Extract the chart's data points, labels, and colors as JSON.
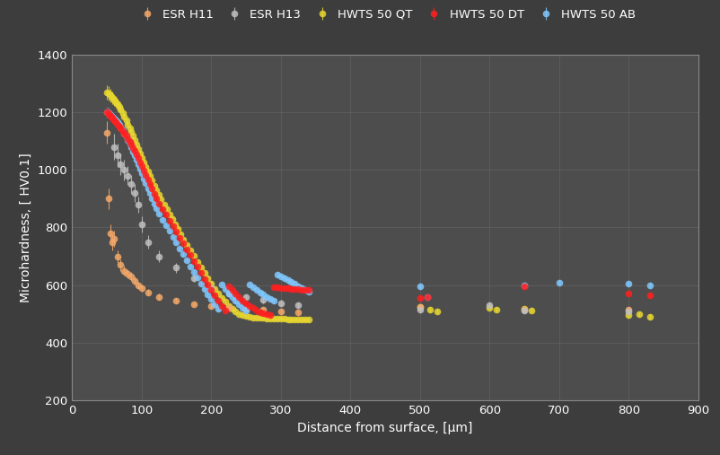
{
  "background_color": "#3d3d3d",
  "plot_bg_color": "#4d4d4d",
  "grid_color": "#5e5e5e",
  "text_color": "#ffffff",
  "xlabel": "Distance from surface, [μm]",
  "ylabel": "Microhardness, [ HV0.1]",
  "xlim": [
    0,
    900
  ],
  "ylim": [
    200,
    1400
  ],
  "xticks": [
    0,
    100,
    200,
    300,
    400,
    500,
    600,
    700,
    800,
    900
  ],
  "yticks": [
    200,
    400,
    600,
    800,
    1000,
    1200,
    1400
  ],
  "series": [
    {
      "label": "ESR H11",
      "color": "#f5a96a",
      "markersize": 5.5,
      "zorder": 3,
      "x": [
        50,
        52,
        55,
        58,
        60,
        65,
        70,
        75,
        80,
        85,
        90,
        95,
        100,
        110,
        125,
        150,
        175,
        200,
        225,
        250,
        275,
        300,
        325,
        500,
        650,
        800
      ],
      "y": [
        1130,
        900,
        780,
        750,
        760,
        700,
        670,
        650,
        640,
        630,
        615,
        600,
        590,
        575,
        560,
        545,
        535,
        528,
        522,
        518,
        514,
        510,
        507,
        525,
        515,
        515
      ],
      "yerr": [
        40,
        35,
        30,
        28,
        28,
        22,
        20,
        18,
        16,
        15,
        14,
        13,
        12,
        11,
        10,
        9,
        8,
        8,
        7,
        7,
        7,
        7,
        7,
        10,
        10,
        10
      ]
    },
    {
      "label": "ESR H13",
      "color": "#c0c0c0",
      "markersize": 5.5,
      "zorder": 3,
      "x": [
        60,
        65,
        70,
        75,
        80,
        85,
        90,
        95,
        100,
        110,
        125,
        150,
        175,
        200,
        225,
        250,
        275,
        300,
        325,
        500,
        600,
        650,
        800
      ],
      "y": [
        1080,
        1050,
        1020,
        1000,
        980,
        950,
        920,
        880,
        810,
        750,
        700,
        660,
        625,
        590,
        570,
        558,
        548,
        538,
        530,
        515,
        530,
        512,
        508
      ],
      "yerr": [
        45,
        40,
        38,
        35,
        33,
        32,
        30,
        28,
        28,
        24,
        20,
        16,
        14,
        12,
        11,
        10,
        10,
        10,
        10,
        10,
        10,
        10,
        10
      ]
    },
    {
      "label": "HWTS 50 QT",
      "color": "#e8d830",
      "markersize": 5.5,
      "zorder": 2,
      "x": [
        50,
        52,
        55,
        58,
        60,
        63,
        65,
        68,
        70,
        73,
        75,
        78,
        80,
        83,
        85,
        88,
        90,
        93,
        95,
        98,
        100,
        103,
        106,
        109,
        112,
        115,
        118,
        121,
        125,
        128,
        132,
        136,
        140,
        144,
        148,
        152,
        156,
        160,
        165,
        170,
        175,
        180,
        185,
        190,
        195,
        200,
        205,
        210,
        215,
        220,
        225,
        230,
        235,
        240,
        245,
        250,
        255,
        260,
        265,
        270,
        275,
        280,
        285,
        290,
        295,
        300,
        305,
        310,
        315,
        320,
        325,
        330,
        335,
        340,
        500,
        515,
        525,
        600,
        610,
        650,
        660,
        800,
        815,
        830
      ],
      "y": [
        1270,
        1265,
        1258,
        1250,
        1243,
        1235,
        1228,
        1218,
        1208,
        1196,
        1185,
        1172,
        1158,
        1145,
        1132,
        1118,
        1103,
        1088,
        1073,
        1058,
        1042,
        1026,
        1010,
        994,
        978,
        962,
        946,
        930,
        913,
        897,
        880,
        863,
        846,
        829,
        812,
        794,
        776,
        758,
        739,
        720,
        701,
        681,
        662,
        643,
        624,
        606,
        588,
        571,
        556,
        542,
        529,
        518,
        509,
        501,
        496,
        492,
        490,
        488,
        487,
        486,
        486,
        485,
        485,
        484,
        484,
        483,
        483,
        482,
        482,
        482,
        481,
        481,
        481,
        481,
        525,
        515,
        510,
        522,
        516,
        518,
        513,
        495,
        498,
        490
      ],
      "yerr": [
        25,
        24,
        23,
        22,
        21,
        20,
        19,
        18,
        17,
        16,
        15,
        14,
        13,
        12,
        11,
        10,
        9,
        9,
        8,
        8,
        7,
        7,
        7,
        7,
        7,
        6,
        6,
        6,
        6,
        6,
        6,
        6,
        6,
        6,
        6,
        6,
        6,
        6,
        6,
        6,
        6,
        6,
        6,
        6,
        6,
        6,
        6,
        6,
        6,
        6,
        6,
        6,
        6,
        6,
        6,
        6,
        6,
        6,
        6,
        6,
        6,
        6,
        6,
        6,
        6,
        6,
        6,
        6,
        6,
        6,
        6,
        6,
        6,
        6,
        8,
        8,
        8,
        8,
        8,
        8,
        8,
        8,
        8,
        8
      ]
    },
    {
      "label": "HWTS 50 DT",
      "color": "#ff2020",
      "markersize": 5.5,
      "zorder": 4,
      "x": [
        50,
        52,
        55,
        58,
        60,
        63,
        65,
        68,
        70,
        73,
        75,
        78,
        80,
        83,
        85,
        88,
        90,
        93,
        95,
        98,
        100,
        103,
        106,
        109,
        112,
        115,
        118,
        121,
        125,
        130,
        135,
        140,
        145,
        150,
        155,
        160,
        165,
        170,
        175,
        180,
        185,
        190,
        195,
        200,
        205,
        210,
        215,
        220,
        225,
        230,
        235,
        240,
        245,
        250,
        255,
        260,
        265,
        270,
        275,
        280,
        285,
        290,
        295,
        300,
        305,
        310,
        315,
        320,
        325,
        330,
        335,
        340,
        500,
        510,
        650,
        800,
        830
      ],
      "y": [
        1200,
        1195,
        1188,
        1180,
        1173,
        1165,
        1158,
        1150,
        1143,
        1135,
        1127,
        1118,
        1108,
        1098,
        1088,
        1077,
        1065,
        1053,
        1040,
        1026,
        1012,
        997,
        982,
        966,
        950,
        934,
        917,
        900,
        882,
        863,
        844,
        824,
        805,
        785,
        765,
        745,
        724,
        704,
        683,
        663,
        643,
        622,
        602,
        583,
        564,
        545,
        527,
        511,
        597,
        583,
        570,
        558,
        547,
        537,
        528,
        520,
        513,
        507,
        502,
        498,
        495,
        593,
        592,
        591,
        590,
        589,
        588,
        587,
        586,
        585,
        584,
        583,
        555,
        558,
        595,
        572,
        565
      ],
      "yerr": [
        20,
        19,
        18,
        17,
        16,
        15,
        14,
        13,
        12,
        11,
        10,
        10,
        9,
        9,
        8,
        8,
        8,
        8,
        7,
        7,
        7,
        7,
        7,
        7,
        7,
        7,
        7,
        7,
        7,
        7,
        7,
        7,
        7,
        7,
        7,
        7,
        7,
        7,
        7,
        7,
        7,
        7,
        7,
        7,
        7,
        7,
        7,
        7,
        7,
        7,
        7,
        7,
        7,
        7,
        7,
        7,
        7,
        7,
        7,
        7,
        7,
        7,
        7,
        7,
        7,
        7,
        7,
        7,
        7,
        7,
        7,
        7,
        8,
        8,
        8,
        8,
        8
      ]
    },
    {
      "label": "HWTS 50 AB",
      "color": "#80c8ff",
      "markersize": 5.5,
      "zorder": 3,
      "x": [
        50,
        52,
        55,
        58,
        60,
        63,
        65,
        68,
        70,
        73,
        75,
        78,
        80,
        83,
        85,
        88,
        90,
        93,
        95,
        98,
        100,
        103,
        106,
        109,
        112,
        115,
        118,
        121,
        125,
        130,
        135,
        140,
        145,
        150,
        155,
        160,
        165,
        170,
        175,
        180,
        185,
        190,
        195,
        200,
        205,
        210,
        215,
        220,
        225,
        230,
        235,
        240,
        245,
        250,
        255,
        260,
        265,
        270,
        275,
        280,
        285,
        290,
        295,
        300,
        305,
        310,
        315,
        320,
        325,
        330,
        335,
        340,
        500,
        510,
        650,
        700,
        800,
        830
      ],
      "y": [
        1200,
        1196,
        1190,
        1184,
        1178,
        1172,
        1165,
        1157,
        1148,
        1138,
        1127,
        1116,
        1104,
        1091,
        1078,
        1064,
        1050,
        1035,
        1020,
        1004,
        988,
        971,
        954,
        937,
        920,
        902,
        884,
        866,
        848,
        828,
        808,
        788,
        768,
        748,
        727,
        707,
        686,
        666,
        646,
        626,
        606,
        587,
        569,
        551,
        534,
        517,
        602,
        587,
        572,
        558,
        545,
        533,
        522,
        511,
        602,
        593,
        584,
        575,
        567,
        559,
        552,
        545,
        638,
        631,
        625,
        618,
        611,
        604,
        597,
        590,
        584,
        577,
        595,
        560,
        600,
        610,
        605,
        600
      ],
      "yerr": [
        20,
        19,
        18,
        17,
        16,
        15,
        14,
        13,
        12,
        11,
        10,
        10,
        9,
        9,
        8,
        8,
        8,
        8,
        7,
        7,
        7,
        7,
        7,
        7,
        7,
        7,
        7,
        7,
        7,
        7,
        7,
        7,
        7,
        7,
        7,
        7,
        7,
        7,
        7,
        7,
        7,
        7,
        7,
        7,
        7,
        7,
        7,
        7,
        7,
        7,
        7,
        7,
        7,
        7,
        7,
        7,
        7,
        7,
        7,
        7,
        7,
        7,
        7,
        7,
        7,
        7,
        7,
        7,
        7,
        7,
        7,
        7,
        8,
        8,
        8,
        8,
        8,
        8
      ]
    }
  ]
}
